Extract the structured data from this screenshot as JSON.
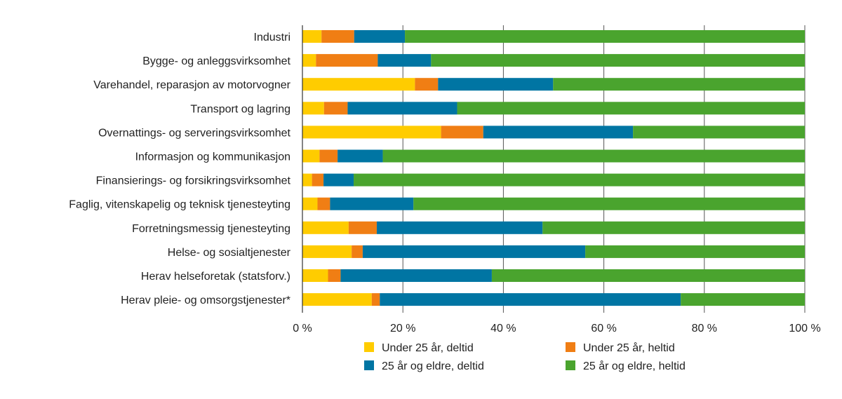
{
  "chart_data": {
    "type": "bar",
    "orientation": "horizontal",
    "stacked": true,
    "categories": [
      "Industri",
      "Bygge- og anleggsvirksomhet",
      "Varehandel, reparasjon av motorvogner",
      "Transport og lagring",
      "Overnattings- og serveringsvirksomhet",
      "Informasjon og kommunikasjon",
      "Finansierings- og forsikringsvirksomhet",
      "Faglig, vitenskapelig og teknisk tjenesteyting",
      "Forretningsmessig tjenesteyting",
      "Helse- og sosialtjenester",
      "Herav helseforetak (statsforv.)",
      "Herav pleie- og omsorgstjenester*"
    ],
    "series": [
      {
        "name": "Under 25 år, deltid",
        "color": "#FFCC00",
        "values": [
          3.8,
          2.7,
          22.4,
          4.3,
          27.6,
          3.4,
          1.9,
          3.0,
          9.2,
          9.8,
          5.1,
          13.8
        ]
      },
      {
        "name": "Under 25 år, heltid",
        "color": "#F07E14",
        "values": [
          6.5,
          12.3,
          4.6,
          4.7,
          8.4,
          3.6,
          2.3,
          2.5,
          5.6,
          2.2,
          2.5,
          1.6
        ]
      },
      {
        "name": "25 år og eldre, deltid",
        "color": "#0075A3",
        "values": [
          10.1,
          10.6,
          22.9,
          21.8,
          29.8,
          9.0,
          6.0,
          16.6,
          33.0,
          44.3,
          30.1,
          59.9
        ]
      },
      {
        "name": "25 år og eldre, heltid",
        "color": "#4AA42E",
        "values": [
          79.6,
          74.4,
          50.1,
          69.2,
          34.2,
          84.0,
          89.8,
          77.9,
          52.2,
          43.7,
          62.3,
          24.7
        ]
      }
    ],
    "xlim": [
      0,
      100
    ],
    "xticks": [
      "0 %",
      "20 %",
      "40 %",
      "60 %",
      "80 %",
      "100 %"
    ],
    "xtick_values": [
      0,
      20,
      40,
      60,
      80,
      100
    ],
    "grid": true,
    "legend_position": "bottom",
    "title": "",
    "xlabel": "",
    "ylabel": ""
  }
}
